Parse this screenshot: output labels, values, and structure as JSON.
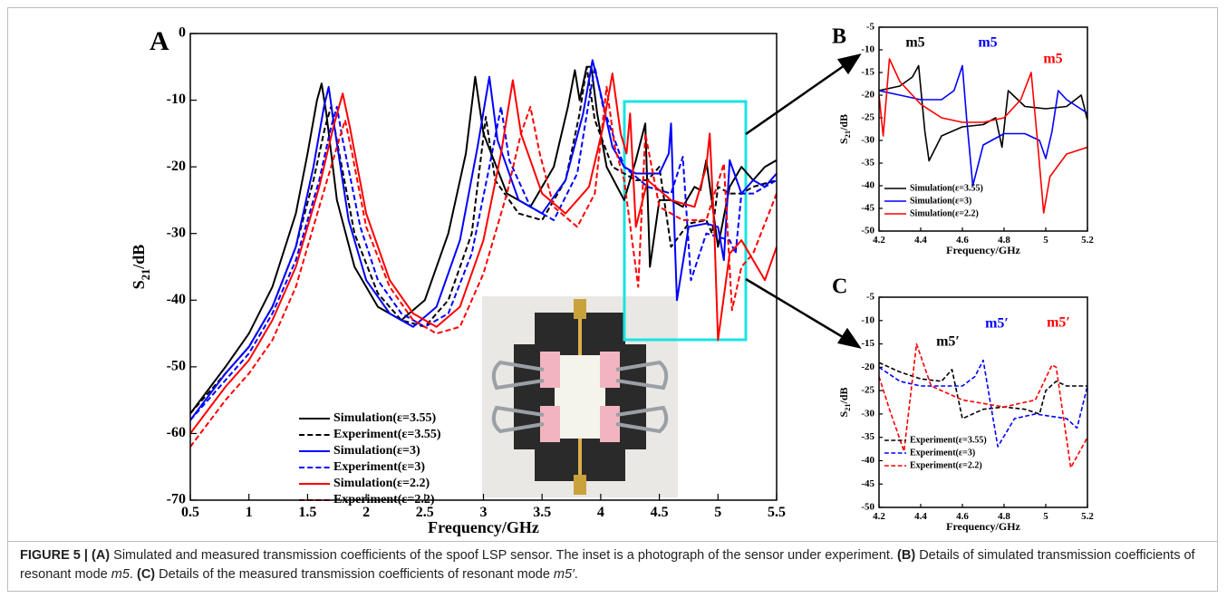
{
  "chart_data": [
    {
      "type": "line",
      "panel_label": "A",
      "xlabel": "Frequency/GHz",
      "ylabel": [
        "S",
        "21",
        "/dB"
      ],
      "xlim": [
        0.5,
        5.5
      ],
      "xticks": [
        0.5,
        1,
        1.5,
        2,
        2.5,
        3,
        3.5,
        4,
        4.5,
        5,
        5.5
      ],
      "ylim": [
        -70,
        0
      ],
      "yticks": [
        0,
        -10,
        -20,
        -30,
        -40,
        -50,
        -60,
        -70
      ],
      "series": [
        {
          "name": "Simulation(ε=3.55)",
          "color": "#000000",
          "dash": false,
          "x": [
            0.5,
            0.8,
            1.0,
            1.2,
            1.4,
            1.5,
            1.58,
            1.62,
            1.66,
            1.75,
            1.9,
            2.1,
            2.3,
            2.5,
            2.7,
            2.85,
            2.93,
            3.0,
            3.2,
            3.4,
            3.6,
            3.72,
            3.78,
            3.82,
            3.88,
            3.92,
            3.97,
            4.05,
            4.2,
            4.3,
            4.38,
            4.42,
            4.5,
            4.6,
            4.7,
            4.8,
            4.85,
            4.9,
            5.0,
            5.1,
            5.2,
            5.3,
            5.4,
            5.5
          ],
          "values": [
            -57,
            -50,
            -45,
            -38,
            -27,
            -18,
            -10,
            -7.5,
            -12,
            -25,
            -35,
            -41,
            -43,
            -40,
            -30,
            -18,
            -6.5,
            -15,
            -24,
            -26,
            -20,
            -11,
            -5.5,
            -10,
            -5,
            -5,
            -12,
            -20,
            -25,
            -19,
            -13.5,
            -35,
            -25,
            -25,
            -26,
            -23,
            -23.5,
            -19,
            -32,
            -23,
            -20,
            -22,
            -20,
            -19
          ]
        },
        {
          "name": "Experiment(ε=3.55)",
          "color": "#000000",
          "dash": true,
          "x": [
            0.5,
            0.8,
            1.0,
            1.2,
            1.4,
            1.55,
            1.65,
            1.7,
            1.76,
            1.9,
            2.1,
            2.3,
            2.5,
            2.7,
            2.9,
            3.02,
            3.1,
            3.3,
            3.5,
            3.7,
            3.82,
            3.88,
            3.95,
            4.1,
            4.3,
            4.4,
            4.5,
            4.6,
            4.75,
            4.9,
            4.95,
            5.0,
            5.1,
            5.2,
            5.3,
            5.5
          ],
          "values": [
            -57,
            -51,
            -47,
            -41,
            -32,
            -22,
            -14,
            -11,
            -17,
            -30,
            -39,
            -43,
            -44,
            -40,
            -30,
            -12.5,
            -22,
            -27,
            -28,
            -22,
            -12,
            -5,
            -13,
            -20,
            -22,
            -22,
            -20,
            -32,
            -28.5,
            -28,
            -30,
            -23,
            -24,
            -24,
            -23,
            -22
          ]
        },
        {
          "name": "Simulation(ε=3)",
          "color": "#0000ff",
          "dash": false,
          "x": [
            0.5,
            0.8,
            1.0,
            1.2,
            1.4,
            1.55,
            1.64,
            1.68,
            1.72,
            1.85,
            2.0,
            2.2,
            2.4,
            2.6,
            2.8,
            2.95,
            3.05,
            3.12,
            3.3,
            3.5,
            3.7,
            3.85,
            3.93,
            4.0,
            4.1,
            4.2,
            4.3,
            4.5,
            4.58,
            4.6,
            4.63,
            4.65,
            4.75,
            4.9,
            5.0,
            5.05,
            5.1,
            5.2,
            5.3,
            5.4,
            5.5
          ],
          "values": [
            -58,
            -51,
            -47,
            -41,
            -32,
            -20,
            -11,
            -8,
            -13,
            -28,
            -37,
            -42,
            -44,
            -41,
            -31,
            -17,
            -6.5,
            -16,
            -25,
            -27,
            -22,
            -12,
            -4,
            -9,
            -17,
            -20,
            -21,
            -21,
            -18,
            -13.5,
            -30,
            -40,
            -29,
            -28.5,
            -29,
            -34,
            -19,
            -24,
            -22,
            -23,
            -21
          ]
        },
        {
          "name": "Experiment(ε=3)",
          "color": "#0000ff",
          "dash": true,
          "x": [
            0.5,
            0.8,
            1.0,
            1.2,
            1.4,
            1.6,
            1.7,
            1.75,
            1.8,
            1.95,
            2.1,
            2.3,
            2.5,
            2.7,
            2.9,
            3.05,
            3.15,
            3.22,
            3.4,
            3.6,
            3.8,
            3.9,
            3.95,
            4.02,
            4.2,
            4.4,
            4.6,
            4.7,
            4.77,
            4.9,
            5.1,
            5.15,
            5.2,
            5.3,
            5.5
          ],
          "values": [
            -58,
            -52,
            -48,
            -42,
            -34,
            -22,
            -14,
            -11,
            -16,
            -29,
            -37,
            -42,
            -44,
            -42,
            -33,
            -20,
            -11,
            -19,
            -26,
            -28,
            -21,
            -10,
            -5,
            -11,
            -20,
            -23,
            -24,
            -18.5,
            -37,
            -30,
            -31,
            -33,
            -24,
            -24,
            -22
          ]
        },
        {
          "name": "Simulation(ε=2.2)",
          "color": "#ff0000",
          "dash": false,
          "x": [
            0.5,
            0.8,
            1.0,
            1.2,
            1.4,
            1.6,
            1.72,
            1.8,
            1.86,
            2.0,
            2.2,
            2.4,
            2.6,
            2.8,
            3.0,
            3.15,
            3.25,
            3.32,
            3.5,
            3.7,
            3.9,
            4.02,
            4.1,
            4.17,
            4.22,
            4.25,
            4.3,
            4.4,
            4.6,
            4.8,
            4.9,
            4.93,
            4.97,
            5.0,
            5.1,
            5.2,
            5.3,
            5.4,
            5.5
          ],
          "values": [
            -60,
            -53,
            -49,
            -43,
            -35,
            -23,
            -14,
            -9,
            -14,
            -27,
            -37,
            -42,
            -44,
            -41,
            -31,
            -18,
            -7,
            -15,
            -24,
            -27,
            -23,
            -14,
            -6,
            -15,
            -18,
            -12,
            -29,
            -22,
            -25,
            -26,
            -20,
            -15,
            -30,
            -46,
            -33,
            -31,
            -34,
            -37,
            -32
          ]
        },
        {
          "name": "Experiment(ε=2.2)",
          "color": "#ff0000",
          "dash": true,
          "x": [
            0.5,
            0.8,
            1.0,
            1.2,
            1.4,
            1.6,
            1.75,
            1.82,
            1.88,
            2.0,
            2.2,
            2.4,
            2.6,
            2.8,
            3.0,
            3.2,
            3.32,
            3.4,
            3.48,
            3.6,
            3.8,
            3.95,
            4.05,
            4.12,
            4.2,
            4.32,
            4.38,
            4.5,
            4.7,
            4.9,
            5.05,
            5.12,
            5.2,
            5.3,
            5.5
          ],
          "values": [
            -62,
            -55,
            -51,
            -46,
            -38,
            -26,
            -17,
            -13,
            -18,
            -29,
            -38,
            -43,
            -45,
            -44,
            -36,
            -24,
            -15,
            -11,
            -18,
            -26,
            -29,
            -24,
            -8,
            -17,
            -22,
            -38,
            -15,
            -26,
            -28,
            -28,
            -19.5,
            -41.5,
            -35,
            -33,
            -24
          ]
        }
      ],
      "annotations": []
    },
    {
      "type": "line",
      "panel_label": "B",
      "xlabel": "Frequency/GHz",
      "ylabel": [
        "S",
        "21",
        "/dB"
      ],
      "xlim": [
        4.2,
        5.2
      ],
      "xticks": [
        4.2,
        4.4,
        4.6,
        4.8,
        5,
        5.2
      ],
      "ylim": [
        -50,
        -5
      ],
      "yticks": [
        -5,
        -10,
        -15,
        -20,
        -25,
        -30,
        -35,
        -40,
        -45,
        -50
      ],
      "series": [
        {
          "name": "Simulation(ε=3.55)",
          "color": "#000000",
          "dash": false,
          "x": [
            4.2,
            4.3,
            4.36,
            4.39,
            4.42,
            4.44,
            4.5,
            4.6,
            4.7,
            4.76,
            4.79,
            4.82,
            4.9,
            5.0,
            5.1,
            5.17,
            5.2
          ],
          "values": [
            -19,
            -18,
            -16,
            -13.5,
            -28,
            -34.5,
            -29,
            -27,
            -26.5,
            -25,
            -31.5,
            -19,
            -22.5,
            -23,
            -22.5,
            -20,
            -25.5
          ]
        },
        {
          "name": "Simulation(ε=3)",
          "color": "#0000ff",
          "dash": false,
          "x": [
            4.2,
            4.3,
            4.4,
            4.5,
            4.56,
            4.6,
            4.62,
            4.65,
            4.7,
            4.8,
            4.9,
            4.97,
            5.0,
            5.03,
            5.06,
            5.1,
            5.2
          ],
          "values": [
            -19,
            -20,
            -21,
            -21,
            -19,
            -13.5,
            -25,
            -40,
            -31,
            -28.5,
            -28.5,
            -30,
            -34,
            -28,
            -19,
            -21,
            -24
          ]
        },
        {
          "name": "Simulation(ε=2.2)",
          "color": "#ff0000",
          "dash": false,
          "x": [
            4.2,
            4.22,
            4.25,
            4.3,
            4.4,
            4.5,
            4.6,
            4.7,
            4.8,
            4.88,
            4.93,
            4.96,
            4.99,
            5.02,
            5.1,
            5.2
          ],
          "values": [
            -20,
            -29,
            -12,
            -17,
            -22,
            -25,
            -26,
            -26,
            -25,
            -21,
            -15,
            -30,
            -46,
            -38,
            -33,
            -31.5
          ]
        }
      ],
      "annotations": [
        {
          "text": "m5",
          "color": "#000000"
        },
        {
          "text": "m5",
          "color": "#0000ff"
        },
        {
          "text": "m5",
          "color": "#ff0000"
        }
      ]
    },
    {
      "type": "line",
      "panel_label": "C",
      "xlabel": "Frequency/GHz",
      "ylabel": [
        "S",
        "21",
        "/dB"
      ],
      "xlim": [
        4.2,
        5.2
      ],
      "xticks": [
        4.2,
        4.4,
        4.6,
        4.8,
        5,
        5.2
      ],
      "ylim": [
        -50,
        -5
      ],
      "yticks": [
        -5,
        -10,
        -15,
        -20,
        -25,
        -30,
        -35,
        -40,
        -45,
        -50
      ],
      "series": [
        {
          "name": "Experiment(ε=3.55)",
          "color": "#000000",
          "dash": true,
          "x": [
            4.2,
            4.3,
            4.4,
            4.5,
            4.55,
            4.6,
            4.7,
            4.8,
            4.9,
            4.97,
            5.0,
            5.05,
            5.1,
            5.2
          ],
          "values": [
            -19,
            -21,
            -22.5,
            -23,
            -20.5,
            -31,
            -29,
            -28.5,
            -29,
            -30,
            -25,
            -23,
            -24,
            -24
          ]
        },
        {
          "name": "Experiment(ε=3)",
          "color": "#0000ff",
          "dash": true,
          "x": [
            4.2,
            4.3,
            4.4,
            4.6,
            4.66,
            4.7,
            4.77,
            4.85,
            4.95,
            5.1,
            5.15,
            5.2
          ],
          "values": [
            -20,
            -23,
            -24,
            -24,
            -22,
            -18.5,
            -37,
            -31,
            -30,
            -31,
            -33,
            -24
          ]
        },
        {
          "name": "Experiment(ε=2.2)",
          "color": "#ff0000",
          "dash": true,
          "x": [
            4.2,
            4.25,
            4.32,
            4.38,
            4.45,
            4.6,
            4.8,
            4.95,
            5.03,
            5.05,
            5.12,
            5.2
          ],
          "values": [
            -22,
            -29,
            -38,
            -15,
            -24,
            -27,
            -28.5,
            -27,
            -19.5,
            -20,
            -41.5,
            -35
          ]
        }
      ],
      "annotations": [
        {
          "text": "m5′",
          "color": "#000000"
        },
        {
          "text": "m5′",
          "color": "#0000ff"
        },
        {
          "text": "m5′",
          "color": "#ff0000"
        }
      ]
    }
  ],
  "caption": [
    "FIGURE 5 | (A)",
    " Simulated and measured transmission coefficients of the spoof LSP sensor. The inset is a photograph of the sensor under experiment. ",
    "(B)",
    " Details of simulated transmission coefficients of resonant mode ",
    "m5",
    ". ",
    "(C)",
    " Details of the measured transmission coefficients of resonant mode ",
    "m5′",
    "."
  ]
}
